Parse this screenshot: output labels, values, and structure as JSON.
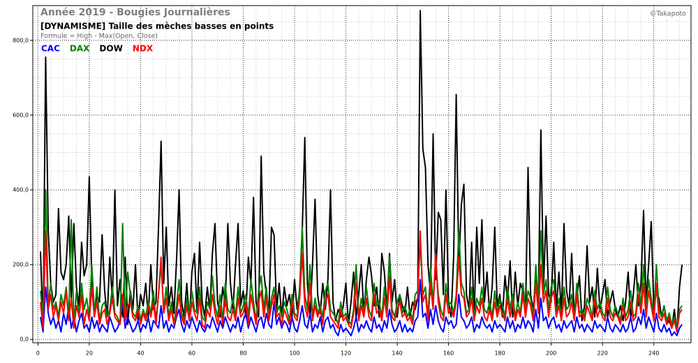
{
  "chart_data": {
    "type": "line",
    "title": "Année 2019 - Bougies Journalières",
    "subtitle": "[DYNAMISME] Taille des mèches basses en points",
    "formula": "Formule = High - Max(Open, Close)",
    "watermark": "©Takapoto",
    "grid": true,
    "minor_grid": true,
    "xlim": [
      -2,
      254.5
    ],
    "ylim": [
      -9,
      893
    ],
    "xticks": [
      0,
      20,
      40,
      60,
      80,
      100,
      120,
      140,
      160,
      180,
      200,
      220,
      240
    ],
    "yticks": [
      {
        "value": 0,
        "label": "0,0"
      },
      {
        "value": 200,
        "label": "200,0"
      },
      {
        "value": 400,
        "label": "400,0"
      },
      {
        "value": 600,
        "label": "600,0"
      },
      {
        "value": 800,
        "label": "800,0"
      }
    ],
    "x": [
      1,
      2,
      3,
      4,
      5,
      6,
      7,
      8,
      9,
      10,
      11,
      12,
      13,
      14,
      15,
      16,
      17,
      18,
      19,
      20,
      21,
      22,
      23,
      24,
      25,
      26,
      27,
      28,
      29,
      30,
      31,
      32,
      33,
      34,
      35,
      36,
      37,
      38,
      39,
      40,
      41,
      42,
      43,
      44,
      45,
      46,
      47,
      48,
      49,
      50,
      51,
      52,
      53,
      54,
      55,
      56,
      57,
      58,
      59,
      60,
      61,
      62,
      63,
      64,
      65,
      66,
      67,
      68,
      69,
      70,
      71,
      72,
      73,
      74,
      75,
      76,
      77,
      78,
      79,
      80,
      81,
      82,
      83,
      84,
      85,
      86,
      87,
      88,
      89,
      90,
      91,
      92,
      93,
      94,
      95,
      96,
      97,
      98,
      99,
      100,
      101,
      102,
      103,
      104,
      105,
      106,
      107,
      108,
      109,
      110,
      111,
      112,
      113,
      114,
      115,
      116,
      117,
      118,
      119,
      120,
      121,
      122,
      123,
      124,
      125,
      126,
      127,
      128,
      129,
      130,
      131,
      132,
      133,
      134,
      135,
      136,
      137,
      138,
      139,
      140,
      141,
      142,
      143,
      144,
      145,
      146,
      147,
      148,
      149,
      150,
      151,
      152,
      153,
      154,
      155,
      156,
      157,
      158,
      159,
      160,
      161,
      162,
      163,
      164,
      165,
      166,
      167,
      168,
      169,
      170,
      171,
      172,
      173,
      174,
      175,
      176,
      177,
      178,
      179,
      180,
      181,
      182,
      183,
      184,
      185,
      186,
      187,
      188,
      189,
      190,
      191,
      192,
      193,
      194,
      195,
      196,
      197,
      198,
      199,
      200,
      201,
      202,
      203,
      204,
      205,
      206,
      207,
      208,
      209,
      210,
      211,
      212,
      213,
      214,
      215,
      216,
      217,
      218,
      219,
      220,
      221,
      222,
      223,
      224,
      225,
      226,
      227,
      228,
      229,
      230,
      231,
      232,
      233,
      234,
      235,
      236,
      237,
      238,
      239,
      240,
      241,
      242,
      243,
      244,
      245,
      246,
      247,
      248,
      249,
      250,
      251
    ],
    "series": [
      {
        "name": "CAC",
        "color": "#0000ff",
        "values": [
          60,
          20,
          140,
          70,
          40,
          60,
          30,
          50,
          20,
          70,
          40,
          90,
          30,
          60,
          20,
          50,
          70,
          30,
          40,
          20,
          60,
          30,
          50,
          20,
          40,
          30,
          20,
          60,
          40,
          20,
          30,
          50,
          100,
          30,
          60,
          40,
          20,
          30,
          50,
          20,
          40,
          30,
          60,
          20,
          50,
          40,
          30,
          90,
          30,
          50,
          20,
          40,
          30,
          60,
          80,
          40,
          20,
          50,
          30,
          60,
          40,
          20,
          50,
          30,
          20,
          40,
          30,
          60,
          40,
          20,
          50,
          30,
          60,
          40,
          20,
          40,
          30,
          60,
          20,
          50,
          70,
          30,
          60,
          40,
          20,
          50,
          60,
          30,
          70,
          40,
          30,
          100,
          40,
          60,
          30,
          50,
          40,
          20,
          60,
          30,
          20,
          50,
          90,
          40,
          30,
          70,
          20,
          40,
          30,
          60,
          20,
          50,
          60,
          30,
          40,
          20,
          10,
          40,
          20,
          30,
          20,
          10,
          30,
          60,
          20,
          40,
          30,
          50,
          30,
          20,
          60,
          30,
          40,
          20,
          50,
          30,
          80,
          40,
          20,
          30,
          50,
          20,
          40,
          20,
          30,
          20,
          50,
          60,
          160,
          60,
          70,
          30,
          80,
          40,
          90,
          50,
          30,
          20,
          60,
          40,
          50,
          30,
          40,
          120,
          60,
          50,
          30,
          40,
          60,
          20,
          40,
          30,
          60,
          40,
          30,
          40,
          20,
          50,
          30,
          40,
          30,
          20,
          60,
          30,
          50,
          20,
          40,
          30,
          60,
          30,
          50,
          40,
          20,
          80,
          30,
          110,
          50,
          60,
          30,
          50,
          60,
          30,
          40,
          20,
          50,
          30,
          40,
          50,
          20,
          60,
          30,
          40,
          20,
          40,
          30,
          20,
          50,
          30,
          40,
          30,
          20,
          60,
          30,
          20,
          40,
          30,
          20,
          40,
          20,
          30,
          60,
          20,
          30,
          60,
          40,
          80,
          30,
          60,
          40,
          20,
          70,
          30,
          20,
          40,
          20,
          30,
          10,
          20,
          10,
          30,
          40
        ]
      },
      {
        "name": "DAX",
        "color": "#008000",
        "values": [
          130,
          60,
          400,
          90,
          150,
          80,
          100,
          60,
          120,
          90,
          140,
          60,
          320,
          40,
          130,
          60,
          150,
          80,
          110,
          60,
          200,
          70,
          140,
          50,
          90,
          100,
          60,
          80,
          140,
          70,
          60,
          40,
          310,
          60,
          180,
          120,
          70,
          60,
          90,
          50,
          80,
          60,
          100,
          70,
          130,
          50,
          120,
          200,
          80,
          140,
          60,
          100,
          40,
          90,
          160,
          70,
          50,
          110,
          60,
          130,
          80,
          70,
          140,
          60,
          50,
          100,
          80,
          170,
          90,
          60,
          120,
          50,
          150,
          80,
          70,
          110,
          60,
          140,
          70,
          90,
          120,
          60,
          160,
          100,
          50,
          130,
          170,
          80,
          140,
          60,
          110,
          140,
          70,
          90,
          60,
          100,
          80,
          50,
          120,
          70,
          60,
          140,
          300,
          120,
          80,
          200,
          60,
          110,
          70,
          90,
          60,
          130,
          150,
          80,
          70,
          60,
          40,
          100,
          60,
          70,
          50,
          40,
          80,
          200,
          60,
          110,
          70,
          140,
          80,
          60,
          150,
          90,
          100,
          60,
          140,
          70,
          220,
          80,
          60,
          100,
          120,
          70,
          90,
          60,
          80,
          50,
          120,
          130,
          260,
          120,
          140,
          60,
          190,
          100,
          210,
          120,
          80,
          60,
          150,
          90,
          100,
          70,
          120,
          290,
          150,
          130,
          70,
          80,
          140,
          60,
          110,
          90,
          140,
          80,
          70,
          100,
          60,
          130,
          70,
          110,
          90,
          60,
          140,
          80,
          120,
          60,
          100,
          70,
          150,
          80,
          130,
          110,
          60,
          200,
          90,
          290,
          120,
          160,
          80,
          140,
          160,
          70,
          110,
          60,
          140,
          80,
          90,
          120,
          60,
          150,
          70,
          80,
          60,
          110,
          90,
          60,
          130,
          80,
          100,
          70,
          60,
          140,
          80,
          60,
          90,
          70,
          50,
          110,
          60,
          80,
          130,
          60,
          70,
          150,
          90,
          200,
          80,
          160,
          110,
          60,
          200,
          80,
          60,
          90,
          50,
          70,
          40,
          60,
          30,
          80,
          90
        ]
      },
      {
        "name": "DOW",
        "color": "#000000",
        "values": [
          235,
          30,
          755,
          290,
          150,
          100,
          120,
          350,
          180,
          160,
          200,
          330,
          110,
          310,
          140,
          90,
          260,
          170,
          200,
          435,
          150,
          60,
          120,
          100,
          280,
          130,
          60,
          220,
          100,
          400,
          90,
          160,
          60,
          220,
          40,
          130,
          80,
          200,
          50,
          120,
          90,
          150,
          60,
          200,
          80,
          100,
          300,
          530,
          150,
          300,
          90,
          140,
          70,
          210,
          400,
          100,
          60,
          150,
          50,
          180,
          230,
          70,
          260,
          100,
          60,
          140,
          80,
          230,
          310,
          100,
          60,
          140,
          90,
          310,
          150,
          80,
          200,
          310,
          90,
          130,
          60,
          220,
          150,
          380,
          100,
          60,
          490,
          180,
          120,
          70,
          300,
          280,
          80,
          150,
          60,
          140,
          90,
          120,
          60,
          160,
          80,
          130,
          290,
          540,
          150,
          60,
          200,
          375,
          120,
          70,
          150,
          80,
          160,
          400,
          100,
          50,
          80,
          60,
          90,
          150,
          40,
          100,
          180,
          60,
          120,
          200,
          70,
          160,
          220,
          170,
          90,
          140,
          60,
          230,
          180,
          80,
          230,
          100,
          160,
          60,
          120,
          90,
          70,
          140,
          60,
          100,
          80,
          110,
          880,
          510,
          460,
          200,
          120,
          550,
          160,
          340,
          320,
          120,
          400,
          100,
          60,
          220,
          655,
          200,
          360,
          415,
          120,
          80,
          260,
          60,
          300,
          150,
          320,
          100,
          180,
          70,
          140,
          300,
          90,
          120,
          60,
          170,
          100,
          210,
          60,
          180,
          90,
          150,
          130,
          60,
          460,
          120,
          80,
          160,
          90,
          560,
          140,
          330,
          120,
          100,
          260,
          80,
          180,
          70,
          310,
          130,
          90,
          230,
          60,
          110,
          170,
          50,
          90,
          250,
          100,
          140,
          60,
          190,
          80,
          120,
          160,
          60,
          100,
          130,
          80,
          60,
          90,
          50,
          100,
          180,
          60,
          120,
          200,
          90,
          150,
          345,
          100,
          200,
          315,
          80,
          130,
          110,
          60,
          90,
          40,
          50,
          30,
          80,
          20,
          140,
          200
        ]
      },
      {
        "name": "NDX",
        "color": "#ff0000",
        "values": [
          100,
          30,
          290,
          80,
          120,
          60,
          90,
          50,
          100,
          70,
          130,
          50,
          110,
          30,
          90,
          60,
          120,
          40,
          80,
          50,
          140,
          60,
          100,
          40,
          70,
          80,
          40,
          70,
          110,
          60,
          50,
          40,
          120,
          50,
          90,
          100,
          60,
          50,
          80,
          40,
          70,
          50,
          90,
          60,
          100,
          40,
          120,
          220,
          70,
          110,
          50,
          80,
          40,
          70,
          120,
          60,
          40,
          90,
          50,
          100,
          70,
          50,
          110,
          40,
          30,
          80,
          60,
          120,
          70,
          40,
          90,
          40,
          110,
          60,
          50,
          80,
          50,
          110,
          60,
          70,
          100,
          40,
          120,
          80,
          40,
          100,
          130,
          60,
          110,
          50,
          90,
          120,
          60,
          70,
          40,
          80,
          60,
          40,
          100,
          60,
          50,
          110,
          230,
          90,
          60,
          150,
          50,
          90,
          60,
          80,
          40,
          100,
          120,
          60,
          50,
          40,
          30,
          80,
          50,
          60,
          40,
          30,
          70,
          150,
          50,
          90,
          60,
          110,
          60,
          50,
          120,
          70,
          80,
          50,
          110,
          60,
          170,
          60,
          50,
          80,
          100,
          60,
          70,
          50,
          60,
          40,
          100,
          110,
          290,
          100,
          120,
          50,
          150,
          80,
          230,
          100,
          60,
          50,
          120,
          70,
          80,
          60,
          100,
          220,
          120,
          110,
          60,
          70,
          110,
          50,
          90,
          70,
          110,
          60,
          50,
          80,
          50,
          100,
          60,
          90,
          70,
          50,
          110,
          60,
          100,
          50,
          80,
          60,
          120,
          60,
          110,
          90,
          50,
          150,
          70,
          200,
          100,
          130,
          60,
          110,
          130,
          60,
          90,
          50,
          110,
          60,
          70,
          100,
          50,
          120,
          60,
          70,
          50,
          90,
          70,
          50,
          110,
          60,
          80,
          60,
          50,
          110,
          60,
          50,
          70,
          60,
          40,
          90,
          50,
          60,
          100,
          50,
          60,
          120,
          70,
          150,
          60,
          130,
          90,
          50,
          150,
          60,
          50,
          70,
          40,
          60,
          30,
          50,
          20,
          70,
          80
        ]
      }
    ]
  }
}
